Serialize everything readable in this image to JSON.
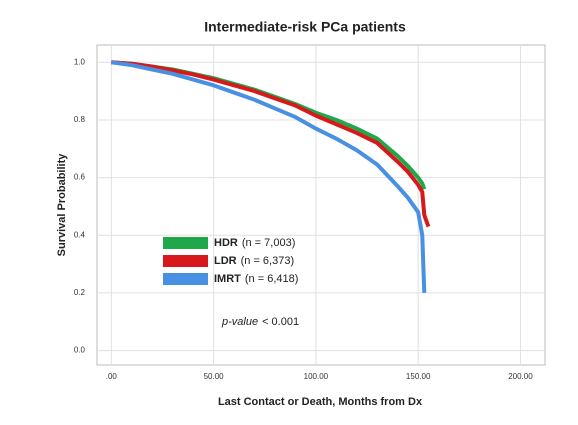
{
  "chart_data": {
    "type": "line",
    "title": "Intermediate-risk PCa patients",
    "xlabel": "Last Contact or Death, Months from Dx",
    "ylabel": "Survival Probability",
    "x": [
      0,
      10,
      20,
      30,
      40,
      50,
      60,
      70,
      80,
      90,
      100,
      110,
      120,
      130,
      140,
      145,
      150,
      152,
      153,
      155
    ],
    "series": [
      {
        "name": "HDR",
        "n_label": "(n = 7,003)",
        "color": "#1fa84a",
        "values": [
          1.0,
          0.995,
          0.985,
          0.975,
          0.96,
          0.945,
          0.925,
          0.905,
          0.88,
          0.855,
          0.825,
          0.8,
          0.77,
          0.735,
          0.675,
          0.64,
          0.6,
          0.58,
          0.56,
          null
        ]
      },
      {
        "name": "LDR",
        "n_label": "(n = 6,373)",
        "color": "#d7191c",
        "values": [
          1.0,
          0.995,
          0.985,
          0.972,
          0.958,
          0.94,
          0.92,
          0.9,
          0.875,
          0.85,
          0.815,
          0.785,
          0.755,
          0.72,
          0.655,
          0.62,
          0.575,
          0.55,
          0.47,
          0.43
        ]
      },
      {
        "name": "IMRT",
        "n_label": "(n = 6,418)",
        "color": "#4a90e2",
        "values": [
          1.0,
          0.99,
          0.975,
          0.96,
          0.94,
          0.92,
          0.895,
          0.87,
          0.84,
          0.81,
          0.77,
          0.735,
          0.695,
          0.645,
          0.57,
          0.53,
          0.48,
          0.4,
          0.2,
          null
        ]
      }
    ],
    "annotation": {
      "italic": "p-value",
      "text": "< 0.001"
    },
    "xlim": [
      -7,
      212
    ],
    "xticks": [
      {
        "value": 0,
        "label": ".00"
      },
      {
        "value": 50,
        "label": "50.00"
      },
      {
        "value": 100,
        "label": "100.00"
      },
      {
        "value": 150,
        "label": "150.00"
      },
      {
        "value": 200,
        "label": "200.00"
      }
    ],
    "ylim": [
      -0.05,
      1.06
    ],
    "yticks": [
      {
        "value": 0,
        "label": "0.0"
      },
      {
        "value": 0.2,
        "label": "0.2"
      },
      {
        "value": 0.4,
        "label": "0.4"
      },
      {
        "value": 0.6,
        "label": "0.6"
      },
      {
        "value": 0.8,
        "label": "0.8"
      },
      {
        "value": 1.0,
        "label": "1.0"
      }
    ],
    "grid": true
  }
}
